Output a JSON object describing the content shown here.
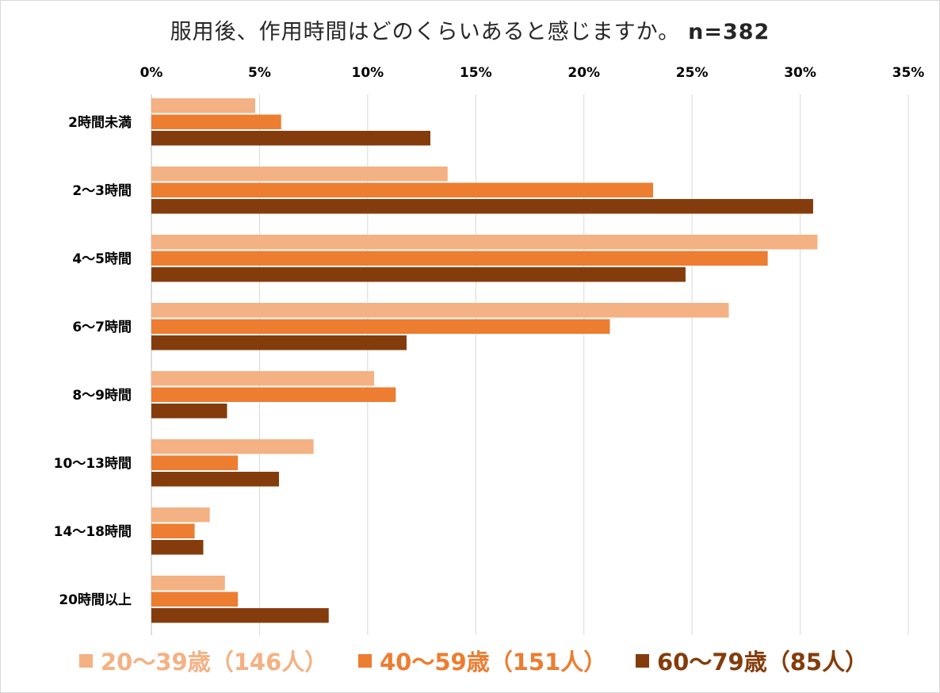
{
  "title": "服用後、作用時間はどのくらいあると感じますか。",
  "sample_size": "n=382",
  "chart_data": {
    "type": "bar",
    "orientation": "horizontal",
    "title": "服用後、作用時間はどのくらいあると感じますか。 n=382",
    "categories": [
      "2時間未満",
      "2～3時間",
      "4～5時間",
      "6～7時間",
      "8～9時間",
      "10～13時間",
      "14～18時間",
      "20時間以上"
    ],
    "series": [
      {
        "name": "20～39歳（146人）",
        "color": "#f4b183",
        "values": [
          4.8,
          13.7,
          30.8,
          26.7,
          10.3,
          7.5,
          2.7,
          3.4
        ]
      },
      {
        "name": "40～59歳（151人）",
        "color": "#ed7d31",
        "values": [
          6.0,
          23.2,
          28.5,
          21.2,
          11.3,
          4.0,
          2.0,
          4.0
        ]
      },
      {
        "name": "60～79歳（85人）",
        "color": "#843c0c",
        "values": [
          12.9,
          30.6,
          24.7,
          11.8,
          3.5,
          5.9,
          2.4,
          8.2
        ]
      }
    ],
    "x_ticks": [
      "0%",
      "5%",
      "10%",
      "15%",
      "20%",
      "25%",
      "30%",
      "35%"
    ],
    "xlim": [
      0,
      35
    ],
    "x_axis_position": "top",
    "grid": true,
    "legend_position": "bottom"
  }
}
